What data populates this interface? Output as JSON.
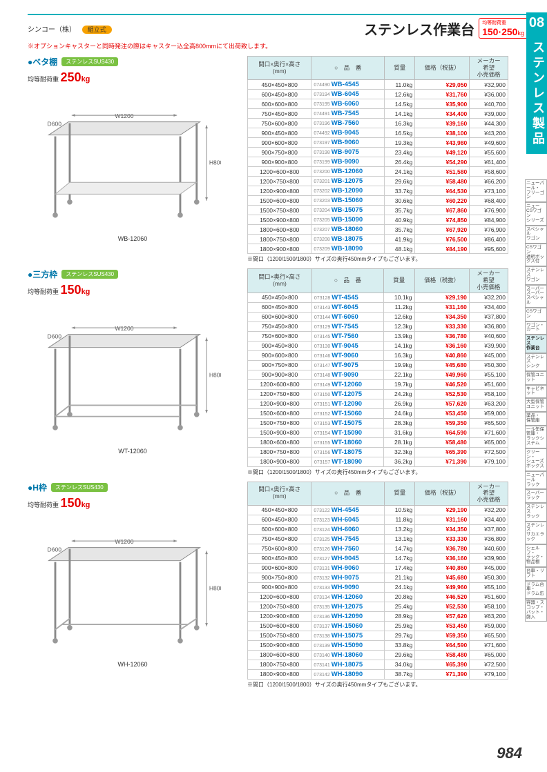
{
  "brand": "シンコー（株）",
  "brand_tag": "組立式",
  "page_title": "ステンレス作業台",
  "load_badge_label": "均等耐荷重",
  "load_badge_value": "150·250",
  "load_badge_unit": "kg",
  "notice": "※オプションキャスターと同時発注の際はキャスター込全高800mmにて出荷致します。",
  "tab_number": "08",
  "tab_text": "ステンレス製品",
  "page_number": "984",
  "headers": {
    "dim": "間口×奥行×高さ\n(mm)",
    "mark": "○",
    "code": "品　番",
    "mass": "質量",
    "price": "価格（税抜）",
    "msrp": "メーカー\n希望\n小売価格"
  },
  "table_note": "※間口（1200/1500/1800）サイズの奥行450mmタイプもございます。",
  "sidebar_items": [
    "ニューパール・\nフリーゴン",
    "ニューCSワゴン\nシリーズ",
    "スペシャル\nワゴン",
    "CSワゴン\n透明ボックス付",
    "ステンレス\nワゴン",
    "スーパー\nスーパースペシャル",
    "CSワゴン",
    "ワゴン・\nカート",
    "ステンレス\n作業台",
    "ステンレス\nシンク",
    "保管ユニット",
    "キャビネット",
    "大型保管\nユニット",
    "薬品・\n保管庫",
    "一斗缶保管庫・\nラックシステム",
    "クリーン・\nシューズボックス",
    "ニューパール\nラック",
    "スーパー\nラック",
    "ステンレス\nラック",
    "ステンレス\nサカエラック",
    "シェルフ・\nラック・物品棚",
    "台車・リフト",
    "ドラム台車・\nドラム缶",
    "容器・スコップ・\nバット・篩入"
  ],
  "sidebar_active_index": 8,
  "sections": [
    {
      "title": "ベタ棚",
      "material": "ステンレスSUS430",
      "load": "250",
      "caption": "WB-12060",
      "dim_w": "W1200",
      "dim_d": "D600",
      "dim_h": "H800",
      "svg_type": "shelf",
      "rows": [
        {
          "d": "450×450×800",
          "sm": "074490",
          "pn": "WB-4545",
          "m": "11.0kg",
          "p": "¥29,050",
          "r": "¥32,900",
          "sep": 0
        },
        {
          "d": "600×450×800",
          "sm": "073194",
          "pn": "WB-6045",
          "m": "12.6kg",
          "p": "¥31,760",
          "r": "¥36,000",
          "sep": 0
        },
        {
          "d": "600×600×800",
          "sm": "073195",
          "pn": "WB-6060",
          "m": "14.5kg",
          "p": "¥35,900",
          "r": "¥40,700",
          "sep": 0
        },
        {
          "d": "750×450×800",
          "sm": "074491",
          "pn": "WB-7545",
          "m": "14.1kg",
          "p": "¥34,400",
          "r": "¥39,000",
          "sep": 1
        },
        {
          "d": "750×600×800",
          "sm": "073196",
          "pn": "WB-7560",
          "m": "16.3kg",
          "p": "¥39,160",
          "r": "¥44,300",
          "sep": 0
        },
        {
          "d": "900×450×800",
          "sm": "074492",
          "pn": "WB-9045",
          "m": "16.5kg",
          "p": "¥38,100",
          "r": "¥43,200",
          "sep": 1
        },
        {
          "d": "900×600×800",
          "sm": "073197",
          "pn": "WB-9060",
          "m": "19.3kg",
          "p": "¥43,980",
          "r": "¥49,600",
          "sep": 0
        },
        {
          "d": "900×750×800",
          "sm": "073198",
          "pn": "WB-9075",
          "m": "23.4kg",
          "p": "¥49,120",
          "r": "¥55,600",
          "sep": 0
        },
        {
          "d": "900×900×800",
          "sm": "073199",
          "pn": "WB-9090",
          "m": "26.4kg",
          "p": "¥54,290",
          "r": "¥61,400",
          "sep": 0
        },
        {
          "d": "1200×600×800",
          "sm": "073200",
          "pn": "WB-12060",
          "m": "24.1kg",
          "p": "¥51,580",
          "r": "¥58,600",
          "sep": 1
        },
        {
          "d": "1200×750×800",
          "sm": "073201",
          "pn": "WB-12075",
          "m": "29.6kg",
          "p": "¥58,480",
          "r": "¥66,200",
          "sep": 0
        },
        {
          "d": "1200×900×800",
          "sm": "073202",
          "pn": "WB-12090",
          "m": "33.7kg",
          "p": "¥64,530",
          "r": "¥73,100",
          "sep": 0
        },
        {
          "d": "1500×600×800",
          "sm": "073203",
          "pn": "WB-15060",
          "m": "30.6kg",
          "p": "¥60,220",
          "r": "¥68,400",
          "sep": 1
        },
        {
          "d": "1500×750×800",
          "sm": "073204",
          "pn": "WB-15075",
          "m": "35.7kg",
          "p": "¥67,860",
          "r": "¥76,900",
          "sep": 0
        },
        {
          "d": "1500×900×800",
          "sm": "073205",
          "pn": "WB-15090",
          "m": "40.9kg",
          "p": "¥74,850",
          "r": "¥84,900",
          "sep": 0
        },
        {
          "d": "1800×600×800",
          "sm": "073207",
          "pn": "WB-18060",
          "m": "35.7kg",
          "p": "¥67,920",
          "r": "¥76,900",
          "sep": 1
        },
        {
          "d": "1800×750×800",
          "sm": "073208",
          "pn": "WB-18075",
          "m": "41.9kg",
          "p": "¥76,500",
          "r": "¥86,400",
          "sep": 0
        },
        {
          "d": "1800×900×800",
          "sm": "073209",
          "pn": "WB-18090",
          "m": "48.1kg",
          "p": "¥84,190",
          "r": "¥95,600",
          "sep": 0
        }
      ]
    },
    {
      "title": "三方枠",
      "material": "ステンレスSUS430",
      "load": "150",
      "caption": "WT-12060",
      "dim_w": "W1200",
      "dim_d": "D600",
      "dim_h": "H800",
      "svg_type": "threeside",
      "rows": [
        {
          "d": "450×450×800",
          "sm": "073128",
          "pn": "WT-4545",
          "m": "10.1kg",
          "p": "¥29,190",
          "r": "¥32,200",
          "sep": 0
        },
        {
          "d": "600×450×800",
          "sm": "073143",
          "pn": "WT-6045",
          "m": "11.2kg",
          "p": "¥31,160",
          "r": "¥34,400",
          "sep": 0
        },
        {
          "d": "600×600×800",
          "sm": "073144",
          "pn": "WT-6060",
          "m": "12.6kg",
          "p": "¥34,350",
          "r": "¥37,800",
          "sep": 0
        },
        {
          "d": "750×450×800",
          "sm": "073129",
          "pn": "WT-7545",
          "m": "12.3kg",
          "p": "¥33,330",
          "r": "¥36,800",
          "sep": 1
        },
        {
          "d": "750×600×800",
          "sm": "073145",
          "pn": "WT-7560",
          "m": "13.9kg",
          "p": "¥36,780",
          "r": "¥40,600",
          "sep": 0
        },
        {
          "d": "900×450×800",
          "sm": "073130",
          "pn": "WT-9045",
          "m": "14.1kg",
          "p": "¥36,160",
          "r": "¥39,900",
          "sep": 1
        },
        {
          "d": "900×600×800",
          "sm": "073146",
          "pn": "WT-9060",
          "m": "16.3kg",
          "p": "¥40,860",
          "r": "¥45,000",
          "sep": 0
        },
        {
          "d": "900×750×800",
          "sm": "073147",
          "pn": "WT-9075",
          "m": "19.9kg",
          "p": "¥45,680",
          "r": "¥50,300",
          "sep": 0
        },
        {
          "d": "900×900×800",
          "sm": "073148",
          "pn": "WT-9090",
          "m": "22.1kg",
          "p": "¥49,960",
          "r": "¥55,100",
          "sep": 0
        },
        {
          "d": "1200×600×800",
          "sm": "073149",
          "pn": "WT-12060",
          "m": "19.7kg",
          "p": "¥46,520",
          "r": "¥51,600",
          "sep": 1
        },
        {
          "d": "1200×750×800",
          "sm": "073150",
          "pn": "WT-12075",
          "m": "24.2kg",
          "p": "¥52,530",
          "r": "¥58,100",
          "sep": 0
        },
        {
          "d": "1200×900×800",
          "sm": "073151",
          "pn": "WT-12090",
          "m": "26.9kg",
          "p": "¥57,620",
          "r": "¥63,200",
          "sep": 0
        },
        {
          "d": "1500×600×800",
          "sm": "073152",
          "pn": "WT-15060",
          "m": "24.6kg",
          "p": "¥53,450",
          "r": "¥59,000",
          "sep": 1
        },
        {
          "d": "1500×750×800",
          "sm": "073153",
          "pn": "WT-15075",
          "m": "28.3kg",
          "p": "¥59,350",
          "r": "¥65,500",
          "sep": 0
        },
        {
          "d": "1500×900×800",
          "sm": "073154",
          "pn": "WT-15090",
          "m": "31.6kg",
          "p": "¥64,590",
          "r": "¥71,600",
          "sep": 0
        },
        {
          "d": "1800×600×800",
          "sm": "073155",
          "pn": "WT-18060",
          "m": "28.1kg",
          "p": "¥58,480",
          "r": "¥65,000",
          "sep": 1
        },
        {
          "d": "1800×750×800",
          "sm": "073156",
          "pn": "WT-18075",
          "m": "32.3kg",
          "p": "¥65,390",
          "r": "¥72,500",
          "sep": 0
        },
        {
          "d": "1800×900×800",
          "sm": "073157",
          "pn": "WT-18090",
          "m": "36.2kg",
          "p": "¥71,390",
          "r": "¥79,100",
          "sep": 0
        }
      ]
    },
    {
      "title": "H枠",
      "material": "ステンレスSUS430",
      "load": "150",
      "caption": "WH-12060",
      "dim_w": "W1200",
      "dim_d": "D600",
      "dim_h": "H800",
      "svg_type": "hframe",
      "rows": [
        {
          "d": "450×450×800",
          "sm": "073122",
          "pn": "WH-4545",
          "m": "10.5kg",
          "p": "¥29,190",
          "r": "¥32,200",
          "sep": 0
        },
        {
          "d": "600×450×800",
          "sm": "073123",
          "pn": "WH-6045",
          "m": "11.8kg",
          "p": "¥31,160",
          "r": "¥34,400",
          "sep": 0
        },
        {
          "d": "600×600×800",
          "sm": "073124",
          "pn": "WH-6060",
          "m": "13.2kg",
          "p": "¥34,350",
          "r": "¥37,800",
          "sep": 0
        },
        {
          "d": "750×450×800",
          "sm": "073125",
          "pn": "WH-7545",
          "m": "13.1kg",
          "p": "¥33,330",
          "r": "¥36,800",
          "sep": 1
        },
        {
          "d": "750×600×800",
          "sm": "073126",
          "pn": "WH-7560",
          "m": "14.7kg",
          "p": "¥36,780",
          "r": "¥40,600",
          "sep": 0
        },
        {
          "d": "900×450×800",
          "sm": "073127",
          "pn": "WH-9045",
          "m": "14.7kg",
          "p": "¥36,160",
          "r": "¥39,900",
          "sep": 1
        },
        {
          "d": "900×600×800",
          "sm": "073131",
          "pn": "WH-9060",
          "m": "17.4kg",
          "p": "¥40,860",
          "r": "¥45,000",
          "sep": 0
        },
        {
          "d": "900×750×800",
          "sm": "073132",
          "pn": "WH-9075",
          "m": "21.1kg",
          "p": "¥45,680",
          "r": "¥50,300",
          "sep": 0
        },
        {
          "d": "900×900×800",
          "sm": "073133",
          "pn": "WH-9090",
          "m": "24.1kg",
          "p": "¥49,960",
          "r": "¥55,100",
          "sep": 0
        },
        {
          "d": "1200×600×800",
          "sm": "073134",
          "pn": "WH-12060",
          "m": "20.8kg",
          "p": "¥46,520",
          "r": "¥51,600",
          "sep": 1
        },
        {
          "d": "1200×750×800",
          "sm": "073135",
          "pn": "WH-12075",
          "m": "25.4kg",
          "p": "¥52,530",
          "r": "¥58,100",
          "sep": 0
        },
        {
          "d": "1200×900×800",
          "sm": "073136",
          "pn": "WH-12090",
          "m": "28.9kg",
          "p": "¥57,620",
          "r": "¥63,200",
          "sep": 0
        },
        {
          "d": "1500×600×800",
          "sm": "073137",
          "pn": "WH-15060",
          "m": "25.9kg",
          "p": "¥53,450",
          "r": "¥59,000",
          "sep": 1
        },
        {
          "d": "1500×750×800",
          "sm": "073138",
          "pn": "WH-15075",
          "m": "29.7kg",
          "p": "¥59,350",
          "r": "¥65,500",
          "sep": 0
        },
        {
          "d": "1500×900×800",
          "sm": "073139",
          "pn": "WH-15090",
          "m": "33.8kg",
          "p": "¥64,590",
          "r": "¥71,600",
          "sep": 0
        },
        {
          "d": "1800×600×800",
          "sm": "073140",
          "pn": "WH-18060",
          "m": "29.6kg",
          "p": "¥58,480",
          "r": "¥65,000",
          "sep": 1
        },
        {
          "d": "1800×750×800",
          "sm": "073141",
          "pn": "WH-18075",
          "m": "34.0kg",
          "p": "¥65,390",
          "r": "¥72,500",
          "sep": 0
        },
        {
          "d": "1800×900×800",
          "sm": "073142",
          "pn": "WH-18090",
          "m": "38.7kg",
          "p": "¥71,390",
          "r": "¥79,100",
          "sep": 0
        }
      ]
    }
  ],
  "colors": {
    "teal": "#00b0bb",
    "hdr_bg": "#d8eef0",
    "price": "#e60000",
    "link": "#0077cc",
    "green": "#7ac142",
    "orange": "#f7a100"
  }
}
